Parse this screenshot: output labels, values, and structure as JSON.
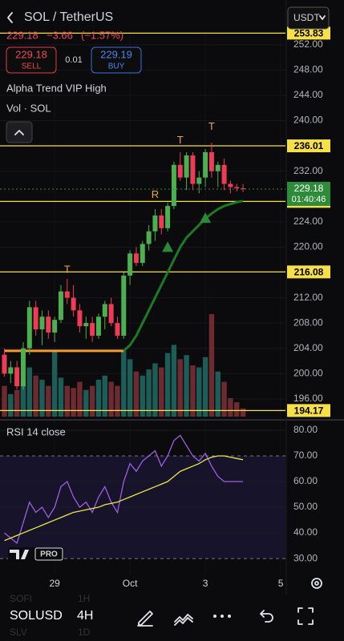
{
  "header": {
    "symbol": "SOL / TetherUS",
    "currency": "USDT",
    "price": "229.18",
    "change": "−3.66",
    "change_pct": "(−1.57%)",
    "sell_price": "229.18",
    "sell_label": "SELL",
    "spread": "0.01",
    "buy_price": "229.19",
    "buy_label": "BUY",
    "indicator_1": "Alpha Trend VIP High",
    "indicator_2": "Vol · SOL"
  },
  "chart_data": [
    {
      "type": "candlestick",
      "ylim": [
        193.2,
        254
      ],
      "yticks": [
        {
          "value": 252,
          "label": "252.00"
        },
        {
          "value": 248,
          "label": "248.00"
        },
        {
          "value": 244,
          "label": "244.00"
        },
        {
          "value": 240,
          "label": "240.00"
        },
        {
          "value": 232,
          "label": "232.00"
        },
        {
          "value": 224,
          "label": "224.00"
        },
        {
          "value": 220,
          "label": "220.00"
        },
        {
          "value": 212,
          "label": "212.00"
        },
        {
          "value": 208,
          "label": "208.00"
        },
        {
          "value": 204,
          "label": "204.00"
        },
        {
          "value": 200,
          "label": "200.00"
        },
        {
          "value": 196,
          "label": "196.00"
        }
      ],
      "xlim": [
        -0.7,
        45.5
      ],
      "xticks": [
        {
          "value": 8,
          "label": "29"
        },
        {
          "value": 20,
          "label": "Oct"
        },
        {
          "value": 32,
          "label": "3"
        },
        {
          "value": 44,
          "label": "5"
        }
      ],
      "up_color": "#4caf50",
      "down_color": "#ef3b55",
      "open": [
        203,
        200,
        201,
        198,
        204,
        210.5,
        207,
        209,
        206.5,
        208.5,
        213,
        212,
        210,
        207.5,
        208,
        206,
        209,
        211,
        208,
        206,
        215.5,
        219,
        217.5,
        220.5,
        222.5,
        225,
        223,
        226.5,
        233,
        231,
        234.5,
        230,
        231,
        235,
        232,
        233,
        230,
        229.5,
        229.3
      ],
      "high": [
        204,
        202,
        202,
        205,
        211.5,
        211.5,
        210,
        210,
        209,
        214,
        215,
        214,
        211,
        209,
        209,
        209.5,
        211.5,
        212,
        209,
        216,
        219.5,
        220,
        221,
        223.5,
        226,
        226,
        227,
        233.5,
        235,
        235,
        235,
        232,
        235.5,
        236.5,
        233.5,
        234,
        230.5,
        230,
        230
      ],
      "low": [
        199.5,
        198.5,
        197.5,
        197.5,
        203,
        206,
        204.5,
        205.5,
        205,
        208,
        211,
        209,
        206.5,
        205.5,
        205,
        205.5,
        207,
        207.5,
        205.5,
        205.5,
        214,
        217,
        217,
        219.5,
        221,
        222,
        222.5,
        226,
        230.5,
        229,
        229,
        228.5,
        229.5,
        231,
        229.5,
        229,
        228.5,
        228.8,
        228.7
      ],
      "close": [
        200,
        201,
        198,
        204,
        210.5,
        207,
        209,
        206.5,
        208.5,
        213,
        212,
        210,
        207.5,
        208,
        206,
        209,
        211,
        208,
        206,
        215.5,
        219,
        217.5,
        220.5,
        222.5,
        225,
        223,
        226.5,
        233,
        231,
        234.5,
        230,
        231,
        235,
        232,
        233,
        230,
        229.5,
        229.3,
        229.18
      ],
      "volume": [
        30,
        22,
        26,
        34,
        48,
        40,
        36,
        30,
        64,
        38,
        30,
        28,
        34,
        26,
        30,
        36,
        40,
        34,
        30,
        64,
        56,
        44,
        40,
        46,
        52,
        48,
        62,
        70,
        56,
        60,
        50,
        48,
        58,
        100,
        44,
        34,
        18,
        14,
        8
      ],
      "volume_lim": [
        0,
        100
      ],
      "lines": [
        {
          "color": "#f59a2e",
          "values": [
            203.6,
            203.6,
            203.6,
            203.6,
            203.6,
            203.6,
            203.6,
            203.6,
            203.6,
            203.6,
            203.6,
            203.6,
            203.6,
            203.6,
            203.6,
            203.6,
            203.6,
            203.6,
            203.6,
            203.6,
            null,
            null,
            null,
            null,
            null,
            null,
            null,
            null,
            null,
            null,
            null,
            null,
            null,
            null,
            null,
            null,
            null,
            null,
            null
          ]
        },
        {
          "color": "#1b7a22",
          "values": [
            null,
            null,
            null,
            null,
            null,
            null,
            null,
            null,
            null,
            null,
            null,
            null,
            null,
            null,
            null,
            null,
            null,
            null,
            null,
            203.6,
            204.5,
            206,
            208,
            210,
            212,
            214,
            216,
            218,
            220,
            221.5,
            222.5,
            223.5,
            224.5,
            225.3,
            226,
            226.5,
            226.8,
            227.1,
            227.3
          ]
        }
      ],
      "levels": [
        253.83,
        236.01,
        227.23,
        216.08,
        194.17
      ],
      "level_color": "#f5e04a",
      "current": {
        "value": 229.18,
        "timer": "01:40:46",
        "color": "#2e8b3a"
      },
      "signals": [
        {
          "label": "T",
          "index": 10,
          "value": 216.4
        },
        {
          "label": "R",
          "index": 24,
          "value": 228.2
        },
        {
          "label": "T",
          "index": 28,
          "value": 236.8
        },
        {
          "label": "T",
          "index": 33,
          "value": 239
        }
      ],
      "triangles": [
        {
          "index": 26,
          "value": 220
        },
        {
          "index": 32,
          "value": 224.6
        }
      ]
    },
    {
      "type": "line",
      "title": "RSI 14 close",
      "ylim": [
        24.1,
        82.8
      ],
      "yticks": [
        {
          "value": 80,
          "label": "80.00"
        },
        {
          "value": 70,
          "label": "70.00"
        },
        {
          "value": 60,
          "label": "60.00"
        },
        {
          "value": 50,
          "label": "50.00"
        },
        {
          "value": 40,
          "label": "40.00"
        },
        {
          "value": 30,
          "label": "30.00"
        }
      ],
      "band": [
        30,
        70
      ],
      "series": [
        {
          "color": "#9c5fe0",
          "values": [
            40,
            38,
            36,
            44,
            52,
            48,
            50,
            46,
            50,
            58,
            60,
            54,
            50,
            52,
            48,
            54,
            58,
            52,
            48,
            60,
            67,
            64,
            68,
            70,
            72,
            66,
            70,
            76,
            78,
            74,
            70,
            68,
            71,
            66,
            62,
            60,
            60,
            60,
            60
          ]
        },
        {
          "color": "#e8e84a",
          "values": [
            37,
            38,
            39,
            40,
            41,
            42,
            43,
            44,
            45,
            46,
            47,
            48,
            48.5,
            49,
            49.5,
            50,
            51,
            51.5,
            52,
            53,
            54,
            55,
            56,
            57,
            58,
            59,
            60,
            62,
            64,
            65,
            66,
            67,
            68.5,
            69.5,
            70,
            70,
            69.5,
            69,
            68.5
          ]
        }
      ]
    }
  ],
  "logo": "PRO",
  "toolbar": {
    "symbol": "SOLUSD",
    "interval": "4H",
    "ghost": [
      "SOFI",
      "1H",
      "SLV",
      "1D"
    ]
  }
}
